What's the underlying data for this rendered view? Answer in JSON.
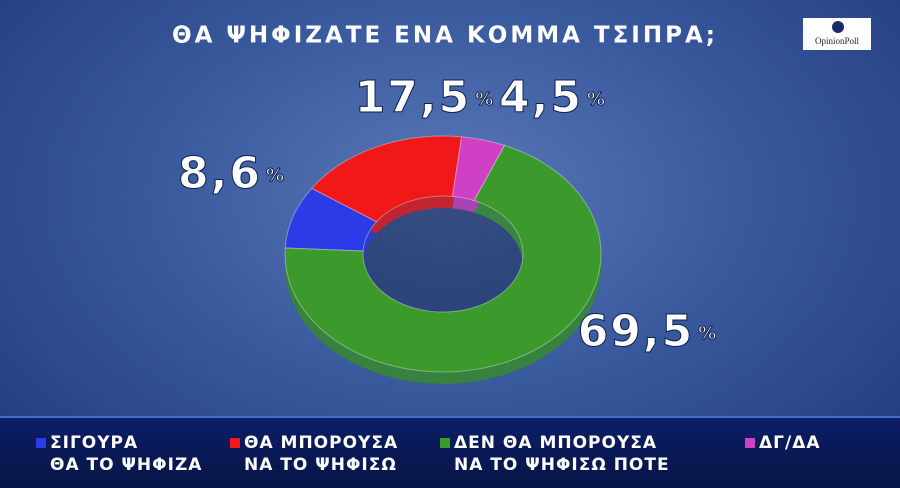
{
  "chart_data": {
    "type": "donut",
    "title": "ΘΑ ΨΗΦΙΖΑΤΕ ΕΝΑ ΚΟΜΜΑ ΤΣΙΠΡΑ;",
    "logo": "OpinionPoll",
    "categories": [
      "ΣΙΓΟΥΡΑ\nΘΑ ΤΟ ΨΗΦΙΖΑ",
      "ΘΑ ΜΠΟΡΟΥΣΑ\nΝΑ ΤΟ ΨΗΦΙΣΩ",
      "ΔΕΝ ΘΑ ΜΠΟΡΟΥΣΑ\nΝΑ ΤΟ ΨΗΦΙΣΩ ΠΟΤΕ",
      "ΔΓ/ΔΑ"
    ],
    "values": [
      8.6,
      17.5,
      69.5,
      4.5
    ],
    "value_labels": [
      "8,6%",
      "17,5%",
      "69,5%",
      "4,5%"
    ],
    "colors": [
      "#2b3be6",
      "#f01818",
      "#3c9a2c",
      "#d040c4"
    ]
  }
}
